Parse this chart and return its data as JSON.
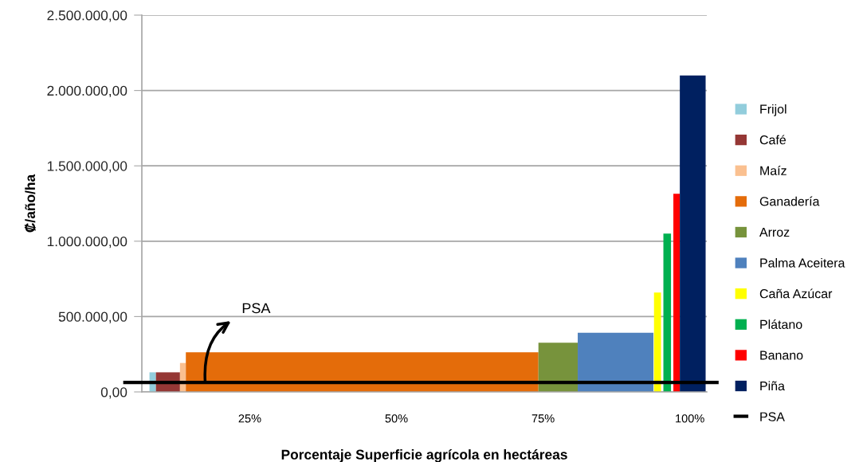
{
  "chart_data": {
    "type": "area",
    "xlabel": "Porcentaje Superficie agrícola en hectáreas",
    "ylabel": "₡/año/ha",
    "xlim": [
      6.6,
      102.9
    ],
    "xticks": [
      {
        "value": 25,
        "label": "25%"
      },
      {
        "value": 50,
        "label": "50%"
      },
      {
        "value": 75,
        "label": "75%"
      },
      {
        "value": 100,
        "label": "100%"
      }
    ],
    "ylim": [
      0,
      2500000
    ],
    "yticks": [
      {
        "value": 0,
        "label": "0,00"
      },
      {
        "value": 500000,
        "label": "500.000,00"
      },
      {
        "value": 1000000,
        "label": "1.000.000,00"
      },
      {
        "value": 1500000,
        "label": "1.500.000,00"
      },
      {
        "value": 2000000,
        "label": "2.000.000,00"
      },
      {
        "value": 2500000,
        "label": "2.500.000,00"
      }
    ],
    "series": [
      {
        "name": "Frijol",
        "color": "#92cddc",
        "x": [
          7.9,
          9.0
        ],
        "values": [
          130000,
          130000
        ]
      },
      {
        "name": "Café",
        "color": "#953735",
        "x": [
          9.0,
          13.1
        ],
        "values": [
          130000,
          130000
        ]
      },
      {
        "name": "Maíz",
        "color": "#fac090",
        "x": [
          13.1,
          14.1
        ],
        "values": [
          192000,
          192000
        ]
      },
      {
        "name": "Ganadería",
        "color": "#e46c0a",
        "x": [
          14.1,
          74.2
        ],
        "values": [
          263000,
          263000
        ]
      },
      {
        "name": "Arroz",
        "color": "#77933c",
        "x": [
          74.2,
          80.9
        ],
        "values": [
          326000,
          326000
        ]
      },
      {
        "name": "Palma Aceitera",
        "color": "#4f81bd",
        "x": [
          80.9,
          93.8
        ],
        "values": [
          393000,
          393000
        ]
      },
      {
        "name": "Caña Azúcar",
        "color": "#ffff00",
        "x": [
          93.9,
          95.1
        ],
        "values": [
          660000,
          660000
        ]
      },
      {
        "name": "Plátano",
        "color": "#00b050",
        "x": [
          95.5,
          96.8
        ],
        "values": [
          1050000,
          1050000
        ]
      },
      {
        "name": "Banano",
        "color": "#ff0000",
        "x": [
          97.2,
          98.3
        ],
        "values": [
          1315000,
          1315000
        ]
      },
      {
        "name": "Piña",
        "color": "#002060",
        "x": [
          98.3,
          102.7
        ],
        "values": [
          2100000,
          2100000
        ]
      }
    ],
    "ref_lines": [
      {
        "axis": "y",
        "value": 63000,
        "label": "PSA",
        "color": "#000000"
      }
    ],
    "annotations": [
      {
        "text": "PSA",
        "x": 17.4,
        "y": 63000
      }
    ],
    "grid": "y",
    "legend": "right"
  }
}
